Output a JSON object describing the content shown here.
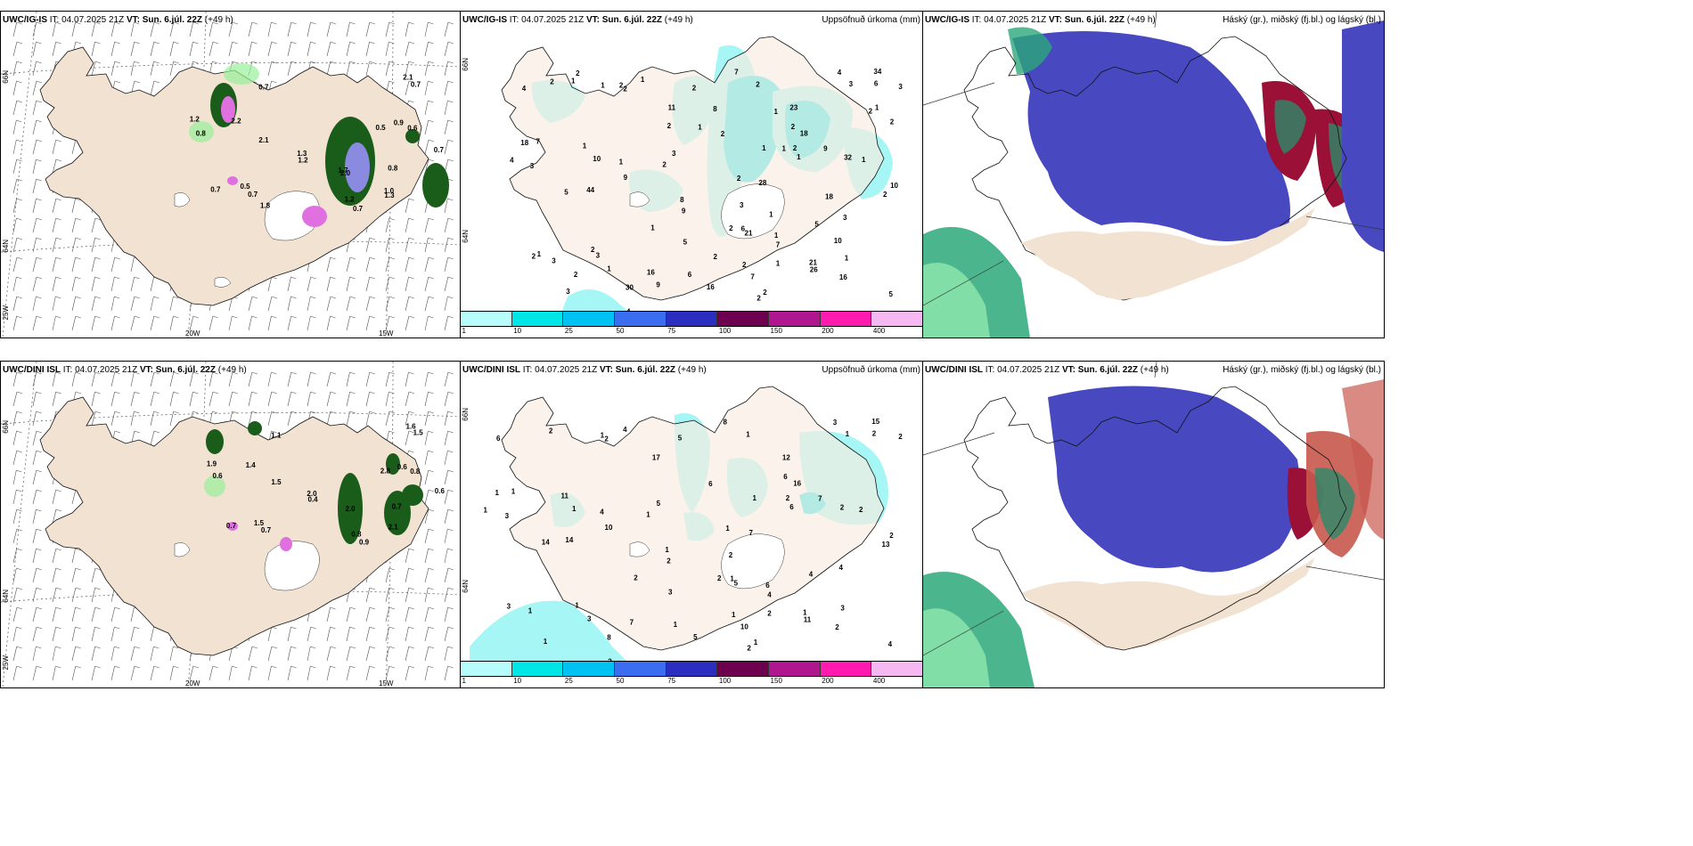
{
  "panels": [
    {
      "model": "UWC/IG-IS",
      "it_label": "IT:",
      "it": "04.07.2025 21Z",
      "vt_label": "VT:",
      "vt": "Sun. 6.júl. 22Z",
      "lead": "(+49 h)",
      "title": ""
    },
    {
      "model": "UWC/IG-IS",
      "it_label": "IT:",
      "it": "04.07.2025 21Z",
      "vt_label": "VT:",
      "vt": "Sun. 6.júl. 22Z",
      "lead": "(+49 h)",
      "title": "Uppsöfnuð úrkoma (mm)"
    },
    {
      "model": "UWC/IG-IS",
      "it_label": "IT:",
      "it": "04.07.2025 21Z",
      "vt_label": "VT:",
      "vt": "Sun. 6.júl. 22Z",
      "lead": "(+49 h)",
      "title": "Háský (gr.), miðský (fj.bl.) og lágský (bl.)"
    },
    {
      "model": "UWC/DINI ISL",
      "it_label": "IT:",
      "it": "04.07.2025 21Z",
      "vt_label": "VT:",
      "vt": "Sun. 6.júl. 22Z",
      "lead": "(+49 h)",
      "title": ""
    },
    {
      "model": "UWC/DINI ISL",
      "it_label": "IT:",
      "it": "04.07.2025 21Z",
      "vt_label": "VT:",
      "vt": "Sun. 6.júl. 22Z",
      "lead": "(+49 h)",
      "title": "Uppsöfnuð úrkoma (mm)"
    },
    {
      "model": "UWC/DINI ISL",
      "it_label": "IT:",
      "it": "04.07.2025 21Z",
      "vt_label": "VT:",
      "vt": "Sun. 6.júl. 22Z",
      "lead": "(+49 h)",
      "title": "Háský (gr.), miðský (fj.bl.) og lágský (bl.)"
    }
  ],
  "axes": {
    "lat66": "66N",
    "lat64": "64N",
    "lon25": "25W",
    "lon20": "20W",
    "lon15": "15W"
  },
  "colorbar": {
    "labels": [
      "1",
      "10",
      "25",
      "50",
      "75",
      "100",
      "150",
      "200",
      "400"
    ],
    "colors": [
      "#b6fdfb",
      "#00e6e6",
      "#00c2f2",
      "#3a6df0",
      "#2a2fc0",
      "#6e0050",
      "#b0178f",
      "#ff1ab0",
      "#f6b8f0"
    ]
  },
  "colors": {
    "land": "#f2e2d2",
    "precip_light": "#a6f6f6",
    "precip_mid": "#36e6ea",
    "precip_strong": "#00c8ee",
    "wind": "#555555",
    "conv_green": "#1a5c1a",
    "conv_light": "#98f098",
    "mag": "#e070e0",
    "cloud_high": "#4848c0",
    "cloud_mid": "#9a1036",
    "cloud_low": "#2ca87a"
  },
  "labels_r1_wind": [
    "0.7",
    "0.7",
    "0.5",
    "2.2",
    "0.9",
    "1.2",
    "0.7",
    "2.1",
    "1.2",
    "0.7",
    "0.7",
    "1.2",
    "1.3",
    "1.7",
    "0.5",
    "2.1",
    "0.8",
    "0.7",
    "0.8",
    "0.6",
    "1.0",
    "2.0",
    "1.8",
    "1.3"
  ],
  "labels_r1_precip": [
    "2",
    "2",
    "3",
    "1",
    "9",
    "7",
    "2",
    "9",
    "9",
    "1",
    "3",
    "18",
    "8",
    "6",
    "1",
    "4",
    "3",
    "3",
    "5",
    "32",
    "21",
    "21",
    "30",
    "26",
    "28",
    "18",
    "44",
    "10",
    "16",
    "11",
    "7",
    "34",
    "23",
    "16",
    "1",
    "6",
    "7",
    "7",
    "10",
    "1",
    "2",
    "2",
    "3",
    "1",
    "2",
    "3",
    "2",
    "5",
    "3",
    "6",
    "1",
    "2",
    "1",
    "2",
    "4",
    "5",
    "16",
    "3",
    "4",
    "2",
    "4",
    "2",
    "2",
    "5",
    "2",
    "3",
    "1",
    "2",
    "1",
    "2",
    "1",
    "1",
    "2",
    "8",
    "9",
    "10",
    "18",
    "2",
    "1",
    "1",
    "1",
    "2",
    "1",
    "2",
    "2",
    "1",
    "1",
    "2",
    "2",
    "1",
    "2"
  ],
  "labels_r2_wind": [
    "0.9",
    "1.1",
    "1.5",
    "1.4",
    "0.6",
    "0.8",
    "0.6",
    "1.5",
    "0.4",
    "0.7",
    "0.7",
    "1.9",
    "2.0",
    "2.0",
    "2.8",
    "1.6",
    "0.6",
    "1.5",
    "0.7",
    "0.8",
    "2.1"
  ],
  "labels_r2_precip": [
    "1",
    "2",
    "1",
    "11",
    "7",
    "10",
    "13",
    "10",
    "2",
    "3",
    "1",
    "1",
    "1",
    "1",
    "6",
    "3",
    "3",
    "1",
    "4",
    "2",
    "1",
    "5",
    "8",
    "11",
    "7",
    "16",
    "14",
    "1",
    "5",
    "17",
    "4",
    "15",
    "12",
    "7",
    "4",
    "1",
    "8",
    "1",
    "2",
    "6",
    "5",
    "1",
    "2",
    "3",
    "1",
    "4",
    "2",
    "3",
    "2",
    "2",
    "2",
    "6",
    "4",
    "6",
    "6",
    "4",
    "2",
    "5",
    "2",
    "3",
    "1",
    "2",
    "2",
    "14",
    "1",
    "1",
    "2",
    "1",
    "2",
    "1",
    "2",
    "1"
  ]
}
